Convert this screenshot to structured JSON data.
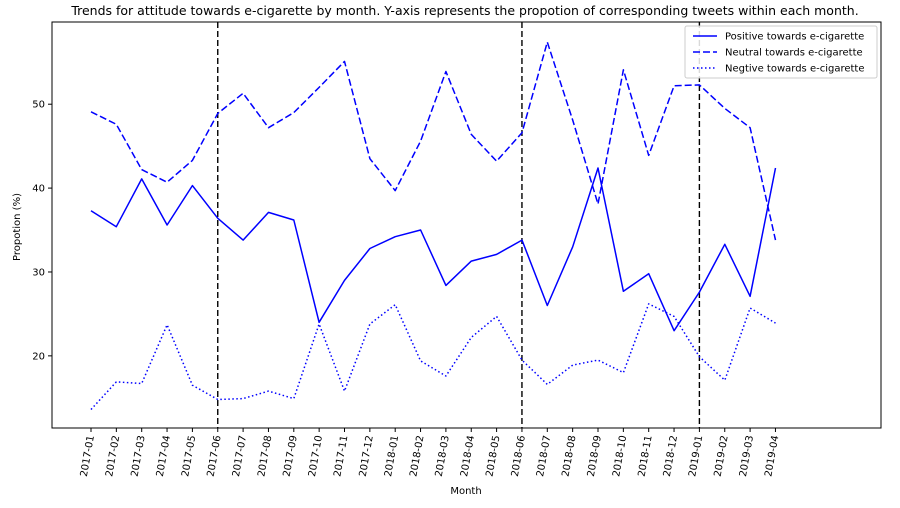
{
  "chart_data": {
    "type": "line",
    "title": "Trends for attitude towards e-cigarette by month. Y-axis represents the propotion of corresponding tweets within each month.",
    "xlabel": "Month",
    "ylabel": "Propotion (%)",
    "categories": [
      "2017-01",
      "2017-02",
      "2017-03",
      "2017-04",
      "2017-05",
      "2017-06",
      "2017-07",
      "2017-08",
      "2017-09",
      "2017-10",
      "2017-11",
      "2017-12",
      "2018-01",
      "2018-02",
      "2018-03",
      "2018-04",
      "2018-05",
      "2018-06",
      "2018-07",
      "2018-08",
      "2018-09",
      "2018-10",
      "2018-11",
      "2018-12",
      "2019-01",
      "2019-02",
      "2019-03",
      "2019-04"
    ],
    "ylim": [
      11.4,
      59.8
    ],
    "yticks": [
      20,
      30,
      40,
      50
    ],
    "grid": false,
    "legend_position": "top-right",
    "vertical_markers": [
      "2017-06",
      "2018-06",
      "2019-01"
    ],
    "series": [
      {
        "name": "Positive towards e-cigarette",
        "style": "solid",
        "color": "#0000ff",
        "values": [
          37.3,
          35.4,
          41.1,
          35.6,
          40.3,
          36.4,
          33.8,
          37.1,
          36.2,
          24.0,
          29.0,
          32.8,
          34.2,
          35.0,
          28.4,
          31.3,
          32.1,
          33.8,
          26.0,
          33.0,
          42.4,
          27.7,
          29.8,
          23.0,
          27.6,
          33.3,
          27.1,
          42.4
        ]
      },
      {
        "name": "Neutral towards e-cigarette",
        "style": "dashed",
        "color": "#0000ff",
        "values": [
          49.1,
          47.6,
          42.2,
          40.7,
          43.3,
          48.9,
          51.3,
          47.2,
          49.0,
          52.0,
          55.1,
          43.5,
          39.7,
          45.6,
          53.9,
          46.4,
          43.2,
          46.6,
          57.4,
          48.1,
          38.1,
          54.1,
          43.9,
          52.2,
          52.3,
          49.5,
          47.2,
          33.8
        ]
      },
      {
        "name": "Negtive towards e-cigarette",
        "style": "dotted",
        "color": "#0000ff",
        "values": [
          13.6,
          16.9,
          16.7,
          23.7,
          16.5,
          14.8,
          14.9,
          15.8,
          14.9,
          23.8,
          15.8,
          23.8,
          26.1,
          19.4,
          17.6,
          22.2,
          24.7,
          19.5,
          16.6,
          18.9,
          19.5,
          18.0,
          26.2,
          24.7,
          19.9,
          17.1,
          25.7,
          23.9
        ]
      }
    ]
  }
}
